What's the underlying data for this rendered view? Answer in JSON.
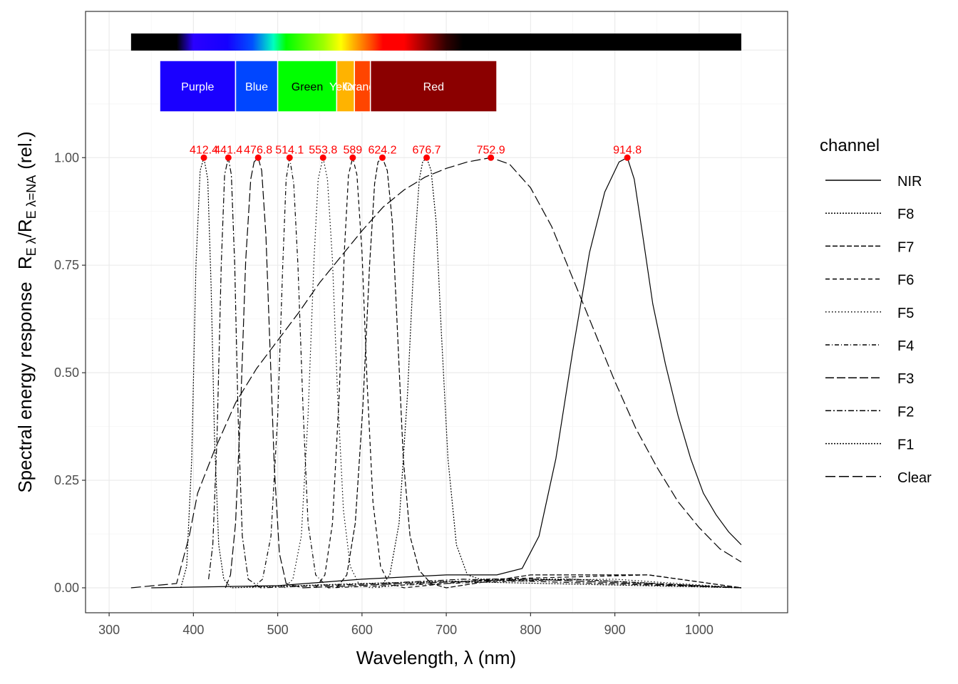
{
  "chart_data": {
    "type": "line",
    "title": "",
    "xlabel": "Wavelength, λ (nm)",
    "ylabel": "Spectral energy response",
    "ylabel_math": {
      "main": "R",
      "sub": "E λ",
      "sep": "/",
      "main2": "R",
      "sub2": "E λ=NA",
      "tail": "(rel.)"
    },
    "xlim": [
      272,
      1105
    ],
    "ylim": [
      -0.058,
      1.34
    ],
    "x_ticks": [
      300,
      400,
      500,
      600,
      700,
      800,
      900,
      1000
    ],
    "y_ticks": [
      0.0,
      0.25,
      0.5,
      0.75,
      1.0
    ],
    "y_tick_labels": [
      "0.00",
      "0.25",
      "0.50",
      "0.75",
      "1.00"
    ],
    "grid": true,
    "legend": {
      "title": "channel",
      "position": "right",
      "entries": [
        "NIR",
        "F8",
        "F7",
        "F6",
        "F5",
        "F4",
        "F3",
        "F2",
        "F1",
        "Clear"
      ]
    },
    "series": [
      {
        "name": "F1",
        "peak": 412.4,
        "peak_label": "412.4",
        "dash": "2,2",
        "points": [
          [
            385,
            0
          ],
          [
            392,
            0.05
          ],
          [
            398,
            0.3
          ],
          [
            403,
            0.75
          ],
          [
            408,
            0.97
          ],
          [
            412.4,
            1.0
          ],
          [
            417,
            0.95
          ],
          [
            421,
            0.7
          ],
          [
            425,
            0.35
          ],
          [
            430,
            0.1
          ],
          [
            436,
            0.02
          ],
          [
            445,
            0
          ],
          [
            600,
            0.01
          ],
          [
            700,
            0.015
          ],
          [
            1050,
            0
          ]
        ]
      },
      {
        "name": "F2",
        "peak": 441.4,
        "peak_label": "441.4",
        "dash": "8,3,2,3",
        "points": [
          [
            418,
            0.02
          ],
          [
            423,
            0.1
          ],
          [
            428,
            0.35
          ],
          [
            433,
            0.75
          ],
          [
            437,
            0.96
          ],
          [
            441.4,
            1.0
          ],
          [
            445,
            0.96
          ],
          [
            449,
            0.75
          ],
          [
            453,
            0.4
          ],
          [
            458,
            0.12
          ],
          [
            465,
            0.02
          ],
          [
            480,
            0
          ],
          [
            620,
            0.01
          ],
          [
            720,
            0.02
          ],
          [
            1050,
            0
          ]
        ]
      },
      {
        "name": "F3",
        "peak": 476.8,
        "peak_label": "476.8",
        "dash": "12,4",
        "points": [
          [
            438,
            0
          ],
          [
            444,
            0.03
          ],
          [
            450,
            0.15
          ],
          [
            456,
            0.42
          ],
          [
            462,
            0.76
          ],
          [
            468,
            0.95
          ],
          [
            472,
            0.99
          ],
          [
            476.8,
            1.0
          ],
          [
            481,
            0.97
          ],
          [
            486,
            0.82
          ],
          [
            491,
            0.55
          ],
          [
            496,
            0.28
          ],
          [
            502,
            0.08
          ],
          [
            510,
            0.01
          ],
          [
            530,
            0
          ],
          [
            650,
            0.01
          ],
          [
            800,
            0.02
          ],
          [
            1050,
            0
          ]
        ]
      },
      {
        "name": "F4",
        "peak": 514.1,
        "peak_label": "514.1",
        "dash": "6,3,1,3",
        "points": [
          [
            470,
            0
          ],
          [
            482,
            0.02
          ],
          [
            492,
            0.12
          ],
          [
            500,
            0.4
          ],
          [
            506,
            0.75
          ],
          [
            510,
            0.95
          ],
          [
            514.1,
            1.0
          ],
          [
            519,
            0.94
          ],
          [
            524,
            0.75
          ],
          [
            530,
            0.42
          ],
          [
            536,
            0.15
          ],
          [
            545,
            0.03
          ],
          [
            560,
            0
          ],
          [
            700,
            0.01
          ],
          [
            850,
            0.02
          ],
          [
            1050,
            0
          ]
        ]
      },
      {
        "name": "F5",
        "peak": 553.8,
        "peak_label": "553.8",
        "dash": "1.5,3",
        "points": [
          [
            508,
            0
          ],
          [
            518,
            0.02
          ],
          [
            528,
            0.12
          ],
          [
            536,
            0.4
          ],
          [
            543,
            0.76
          ],
          [
            548,
            0.95
          ],
          [
            553.8,
            1.0
          ],
          [
            559,
            0.95
          ],
          [
            565,
            0.76
          ],
          [
            571,
            0.45
          ],
          [
            578,
            0.18
          ],
          [
            586,
            0.05
          ],
          [
            596,
            0.01
          ],
          [
            610,
            0
          ],
          [
            700,
            0.015
          ],
          [
            900,
            0.02
          ],
          [
            1050,
            0
          ]
        ]
      },
      {
        "name": "F6",
        "peak": 589,
        "peak_label": "589",
        "dash": "6,4",
        "points": [
          [
            545,
            0
          ],
          [
            556,
            0.03
          ],
          [
            565,
            0.15
          ],
          [
            573,
            0.45
          ],
          [
            579,
            0.78
          ],
          [
            584,
            0.96
          ],
          [
            589,
            1.0
          ],
          [
            594,
            0.96
          ],
          [
            600,
            0.78
          ],
          [
            606,
            0.48
          ],
          [
            613,
            0.2
          ],
          [
            622,
            0.05
          ],
          [
            632,
            0.01
          ],
          [
            650,
            0
          ],
          [
            750,
            0.02
          ],
          [
            940,
            0.03
          ],
          [
            1050,
            0
          ]
        ]
      },
      {
        "name": "F7",
        "peak": 624.2,
        "peak_label": "624.2",
        "dash": "7,3",
        "points": [
          [
            570,
            0
          ],
          [
            582,
            0.03
          ],
          [
            592,
            0.15
          ],
          [
            601,
            0.42
          ],
          [
            609,
            0.75
          ],
          [
            615,
            0.94
          ],
          [
            619,
            0.99
          ],
          [
            624.2,
            1.0
          ],
          [
            630,
            0.97
          ],
          [
            636,
            0.85
          ],
          [
            642,
            0.6
          ],
          [
            649,
            0.3
          ],
          [
            657,
            0.12
          ],
          [
            668,
            0.04
          ],
          [
            682,
            0.01
          ],
          [
            700,
            0
          ],
          [
            800,
            0.03
          ],
          [
            940,
            0.03
          ],
          [
            1050,
            0
          ]
        ]
      },
      {
        "name": "F8",
        "peak": 676.7,
        "peak_label": "676.7",
        "dash": "2,2",
        "points": [
          [
            620,
            0
          ],
          [
            633,
            0.03
          ],
          [
            644,
            0.15
          ],
          [
            654,
            0.45
          ],
          [
            662,
            0.78
          ],
          [
            668,
            0.95
          ],
          [
            672,
            0.99
          ],
          [
            676.7,
            1.0
          ],
          [
            682,
            0.97
          ],
          [
            688,
            0.85
          ],
          [
            694,
            0.6
          ],
          [
            702,
            0.3
          ],
          [
            712,
            0.1
          ],
          [
            725,
            0.03
          ],
          [
            740,
            0.02
          ],
          [
            850,
            0.02
          ],
          [
            1050,
            0
          ]
        ]
      },
      {
        "name": "Clear",
        "peak": 752.9,
        "peak_label": "752.9",
        "dash": "14,5",
        "points": [
          [
            326,
            0
          ],
          [
            380,
            0.01
          ],
          [
            395,
            0.12
          ],
          [
            405,
            0.22
          ],
          [
            425,
            0.32
          ],
          [
            450,
            0.43
          ],
          [
            475,
            0.51
          ],
          [
            500,
            0.575
          ],
          [
            525,
            0.64
          ],
          [
            550,
            0.71
          ],
          [
            575,
            0.77
          ],
          [
            600,
            0.83
          ],
          [
            625,
            0.885
          ],
          [
            650,
            0.925
          ],
          [
            675,
            0.955
          ],
          [
            700,
            0.975
          ],
          [
            725,
            0.99
          ],
          [
            752.9,
            1.0
          ],
          [
            775,
            0.985
          ],
          [
            800,
            0.93
          ],
          [
            825,
            0.84
          ],
          [
            850,
            0.72
          ],
          [
            875,
            0.6
          ],
          [
            900,
            0.48
          ],
          [
            925,
            0.37
          ],
          [
            950,
            0.28
          ],
          [
            975,
            0.2
          ],
          [
            1000,
            0.14
          ],
          [
            1025,
            0.09
          ],
          [
            1050,
            0.06
          ]
        ]
      },
      {
        "name": "NIR",
        "peak": 914.8,
        "peak_label": "914.8",
        "dash": "",
        "points": [
          [
            350,
            0
          ],
          [
            500,
            0.005
          ],
          [
            600,
            0.02
          ],
          [
            700,
            0.03
          ],
          [
            760,
            0.03
          ],
          [
            790,
            0.045
          ],
          [
            810,
            0.12
          ],
          [
            830,
            0.3
          ],
          [
            850,
            0.55
          ],
          [
            870,
            0.78
          ],
          [
            888,
            0.92
          ],
          [
            905,
            0.99
          ],
          [
            914.8,
            1.0
          ],
          [
            923,
            0.95
          ],
          [
            933,
            0.82
          ],
          [
            945,
            0.66
          ],
          [
            960,
            0.52
          ],
          [
            975,
            0.4
          ],
          [
            990,
            0.3
          ],
          [
            1005,
            0.22
          ],
          [
            1020,
            0.17
          ],
          [
            1035,
            0.13
          ],
          [
            1050,
            0.1
          ]
        ]
      }
    ],
    "spectrum_bar": {
      "range_nm": [
        326,
        1050
      ],
      "stops": [
        {
          "nm": 326,
          "color": "#000000"
        },
        {
          "nm": 380,
          "color": "#000000"
        },
        {
          "nm": 400,
          "color": "#2a00ff"
        },
        {
          "nm": 440,
          "color": "#1500ff"
        },
        {
          "nm": 470,
          "color": "#0050ff"
        },
        {
          "nm": 495,
          "color": "#00ffc0"
        },
        {
          "nm": 510,
          "color": "#00ff00"
        },
        {
          "nm": 555,
          "color": "#a0ff00"
        },
        {
          "nm": 575,
          "color": "#ffff00"
        },
        {
          "nm": 590,
          "color": "#ffb000"
        },
        {
          "nm": 610,
          "color": "#ff5000"
        },
        {
          "nm": 625,
          "color": "#ff0000"
        },
        {
          "nm": 650,
          "color": "#ff0000"
        },
        {
          "nm": 700,
          "color": "#300000"
        },
        {
          "nm": 720,
          "color": "#000000"
        },
        {
          "nm": 1050,
          "color": "#000000"
        }
      ]
    },
    "color_bands": [
      {
        "label": "Purple",
        "from": 360,
        "to": 450,
        "color": "#1a00ff"
      },
      {
        "label": "Blue",
        "from": 450,
        "to": 500,
        "color": "#0046ff"
      },
      {
        "label": "Green",
        "from": 500,
        "to": 570,
        "color": "#00ff00"
      },
      {
        "label": "Yellow",
        "from": 570,
        "to": 591,
        "color": "#ffb300"
      },
      {
        "label": "Orange",
        "from": 591,
        "to": 610,
        "color": "#ff4500"
      },
      {
        "label": "Red",
        "from": 610,
        "to": 760,
        "color": "#8b0000"
      }
    ],
    "peak_color": "#ff0000"
  }
}
